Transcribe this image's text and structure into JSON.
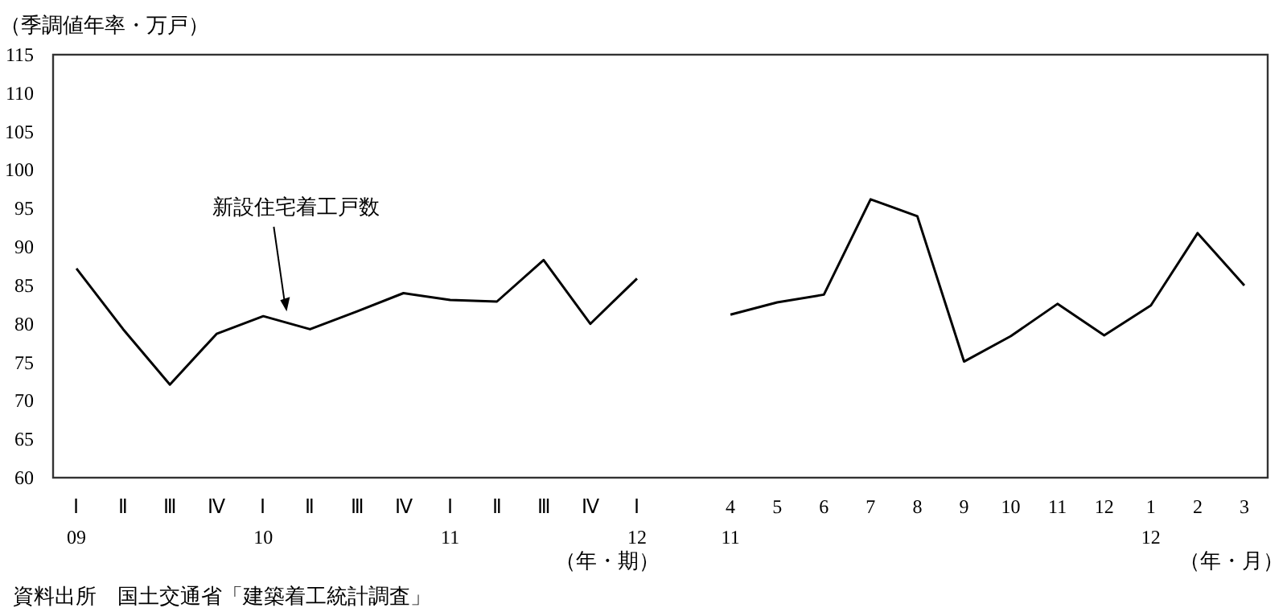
{
  "chart_data": {
    "type": "line",
    "ylabel": "（季調値年率・万戸）",
    "categories": [
      "Ⅰ\n09",
      "Ⅱ",
      "Ⅲ",
      "Ⅳ",
      "Ⅰ\n10",
      "Ⅱ",
      "Ⅲ",
      "Ⅳ",
      "Ⅰ\n11",
      "Ⅱ",
      "Ⅲ",
      "Ⅳ",
      "Ⅰ\n12",
      null,
      "4\n11",
      "5",
      "6",
      "7",
      "8",
      "9",
      "10",
      "11",
      "12",
      "1\n12",
      "2",
      "3"
    ],
    "series": [
      {
        "name": "新設住宅着工戸数",
        "color": "#000000",
        "values": [
          87.2,
          79.3,
          72.1,
          78.7,
          81.0,
          79.3,
          81.6,
          84.0,
          83.1,
          82.9,
          88.3,
          80.0,
          85.9,
          null,
          81.2,
          82.8,
          83.8,
          96.2,
          94.0,
          75.1,
          78.4,
          82.6,
          78.5,
          82.4,
          91.8,
          85.0
        ]
      }
    ],
    "ylim": [
      60,
      115
    ],
    "yticks": [
      60,
      65,
      70,
      75,
      80,
      85,
      90,
      95,
      100,
      105,
      110,
      115
    ],
    "grid": false,
    "marker": "none",
    "line_style": "solid",
    "annotations": [
      "（年・期）",
      "（年・月）",
      "資料出所　国土交通省「建築着工統計調査」"
    ]
  }
}
